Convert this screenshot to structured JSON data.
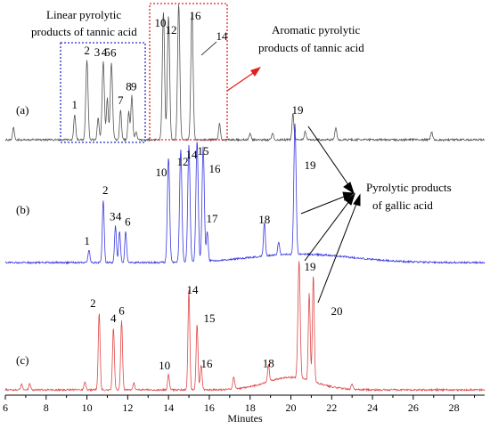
{
  "chart_data": {
    "type": "line",
    "title": "",
    "xlabel": "Minutes",
    "ylabel": "",
    "xlim": [
      6,
      29.5
    ],
    "xticks": [
      "6",
      "8",
      "10",
      "12",
      "14",
      "16",
      "18",
      "20",
      "22",
      "24",
      "26",
      "28"
    ],
    "colors": {
      "a": "#555555",
      "b": "#3a3ae0",
      "c": "#e04848",
      "box_blue": "#2c2cc8",
      "box_red": "#e02020",
      "arrow_red": "#e02020",
      "arrow_black": "#000000"
    },
    "annotations": {
      "linear": [
        "Linear pyrolytic",
        "products of tannic acid"
      ],
      "aromatic": [
        "Aromatic pyrolytic",
        "products of tannic acid"
      ],
      "gallic": [
        "Pyrolytic products",
        "of gallic  acid"
      ]
    },
    "series": [
      {
        "id": "a",
        "label": "(a)",
        "peaks": [
          {
            "x": 6.4,
            "h": 0.15
          },
          {
            "x": 9.4,
            "h": 0.32
          },
          {
            "x": 10.0,
            "h": 1.0
          },
          {
            "x": 10.55,
            "h": 0.28
          },
          {
            "x": 10.8,
            "h": 0.98
          },
          {
            "x": 11.0,
            "h": 0.52
          },
          {
            "x": 11.2,
            "h": 0.97
          },
          {
            "x": 11.65,
            "h": 0.38
          },
          {
            "x": 12.05,
            "h": 0.35
          },
          {
            "x": 12.2,
            "h": 0.55
          },
          {
            "x": 12.4,
            "h": 0.1
          },
          {
            "x": 13.75,
            "h": 1.6
          },
          {
            "x": 14.0,
            "h": 1.55
          },
          {
            "x": 14.5,
            "h": 1.7
          },
          {
            "x": 15.15,
            "h": 1.6
          },
          {
            "x": 16.5,
            "h": 0.2
          },
          {
            "x": 18.0,
            "h": 0.08
          },
          {
            "x": 19.1,
            "h": 0.08
          },
          {
            "x": 20.1,
            "h": 0.33
          },
          {
            "x": 20.7,
            "h": 0.1
          },
          {
            "x": 22.2,
            "h": 0.15
          },
          {
            "x": 26.9,
            "h": 0.1
          }
        ],
        "labels": [
          {
            "text": "1",
            "x": 9.4
          },
          {
            "text": "2",
            "x": 10.0
          },
          {
            "text": "3",
            "x": 10.5
          },
          {
            "text": "4",
            "x": 10.85
          },
          {
            "text": "5",
            "x": 11.0
          },
          {
            "text": "6",
            "x": 11.3
          },
          {
            "text": "7",
            "x": 11.65
          },
          {
            "text": "8",
            "x": 12.05
          },
          {
            "text": "9",
            "x": 12.3
          },
          {
            "text": "10",
            "x": 13.7
          },
          {
            "text": "12",
            "x": 14.2
          },
          {
            "text": "16",
            "x": 15.3
          },
          {
            "text": "14",
            "x": 15.6
          },
          {
            "text": "19",
            "x": 20.2
          }
        ]
      },
      {
        "id": "b",
        "label": "(b)",
        "peaks": [
          {
            "x": 10.1,
            "h": 0.12
          },
          {
            "x": 10.8,
            "h": 0.6
          },
          {
            "x": 11.4,
            "h": 0.35
          },
          {
            "x": 11.6,
            "h": 0.3
          },
          {
            "x": 11.9,
            "h": 0.3
          },
          {
            "x": 14.0,
            "h": 1.0
          },
          {
            "x": 14.6,
            "h": 1.08
          },
          {
            "x": 15.0,
            "h": 1.12
          },
          {
            "x": 15.4,
            "h": 1.15
          },
          {
            "x": 15.7,
            "h": 1.1
          },
          {
            "x": 15.9,
            "h": 0.28
          },
          {
            "x": 18.7,
            "h": 0.32
          },
          {
            "x": 19.4,
            "h": 0.12
          },
          {
            "x": 20.2,
            "h": 1.25
          }
        ],
        "labels": [
          {
            "text": "1",
            "x": 10.0
          },
          {
            "text": "2",
            "x": 10.9
          },
          {
            "text": "3",
            "x": 11.25
          },
          {
            "text": "4",
            "x": 11.55
          },
          {
            "text": "6",
            "x": 12.0
          },
          {
            "text": "10",
            "x": 13.8
          },
          {
            "text": "12",
            "x": 14.55
          },
          {
            "text": "14",
            "x": 15.0
          },
          {
            "text": "15",
            "x": 15.35
          },
          {
            "text": "16",
            "x": 16.1
          },
          {
            "text": "17",
            "x": 16.2
          },
          {
            "text": "18",
            "x": 18.7
          },
          {
            "text": "19",
            "x": 20.9
          }
        ]
      },
      {
        "id": "c",
        "label": "(c)",
        "peaks": [
          {
            "x": 6.8,
            "h": 0.05
          },
          {
            "x": 7.2,
            "h": 0.05
          },
          {
            "x": 9.9,
            "h": 0.06
          },
          {
            "x": 10.6,
            "h": 0.62
          },
          {
            "x": 11.3,
            "h": 0.5
          },
          {
            "x": 11.7,
            "h": 0.56
          },
          {
            "x": 12.3,
            "h": 0.06
          },
          {
            "x": 14.0,
            "h": 0.12
          },
          {
            "x": 15.0,
            "h": 0.8
          },
          {
            "x": 15.4,
            "h": 0.53
          },
          {
            "x": 15.6,
            "h": 0.2
          },
          {
            "x": 17.2,
            "h": 0.1
          },
          {
            "x": 18.9,
            "h": 0.14
          },
          {
            "x": 20.4,
            "h": 0.94
          },
          {
            "x": 20.9,
            "h": 0.7
          },
          {
            "x": 21.1,
            "h": 0.85
          },
          {
            "x": 23.0,
            "h": 0.04
          }
        ],
        "labels": [
          {
            "text": "2",
            "x": 10.3
          },
          {
            "text": "4",
            "x": 11.3
          },
          {
            "text": "6",
            "x": 11.7
          },
          {
            "text": "10",
            "x": 13.8
          },
          {
            "text": "14",
            "x": 15.1
          },
          {
            "text": "15",
            "x": 15.8
          },
          {
            "text": "16",
            "x": 15.9
          },
          {
            "text": "18",
            "x": 18.9
          },
          {
            "text": "19",
            "x": 21.1
          },
          {
            "text": "20",
            "x": 22.2
          }
        ]
      }
    ]
  }
}
